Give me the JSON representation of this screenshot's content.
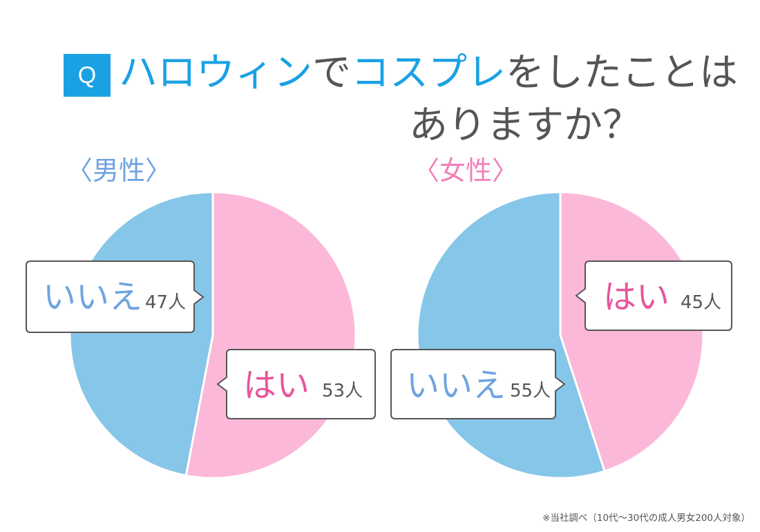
{
  "title": {
    "q_label": "Q",
    "line1_parts": [
      {
        "text": "ハロウィン",
        "highlight": true
      },
      {
        "text": "で",
        "highlight": false
      },
      {
        "text": "コスプレ",
        "highlight": true
      },
      {
        "text": "をしたことは",
        "highlight": false
      }
    ],
    "line2": "ありますか？"
  },
  "colors": {
    "accent": "#1aa1e4",
    "yes_slice": "#fbb8d8",
    "no_slice": "#86c6e8",
    "yes_text": "#e8559a",
    "no_text": "#6ea3e0",
    "male_label": "#6ea3e0",
    "female_label": "#f27fb8",
    "text": "#555555"
  },
  "chart_data": [
    {
      "type": "pie",
      "group": "〈男性〉",
      "slices": [
        {
          "label": "はい",
          "value": 53,
          "unit": "人"
        },
        {
          "label": "いいえ",
          "value": 47,
          "unit": "人"
        }
      ]
    },
    {
      "type": "pie",
      "group": "〈女性〉",
      "slices": [
        {
          "label": "はい",
          "value": 45,
          "unit": "人"
        },
        {
          "label": "いいえ",
          "value": 55,
          "unit": "人"
        }
      ]
    }
  ],
  "footnote": "※当社調べ（10代〜30代の成人男女200人対象）"
}
